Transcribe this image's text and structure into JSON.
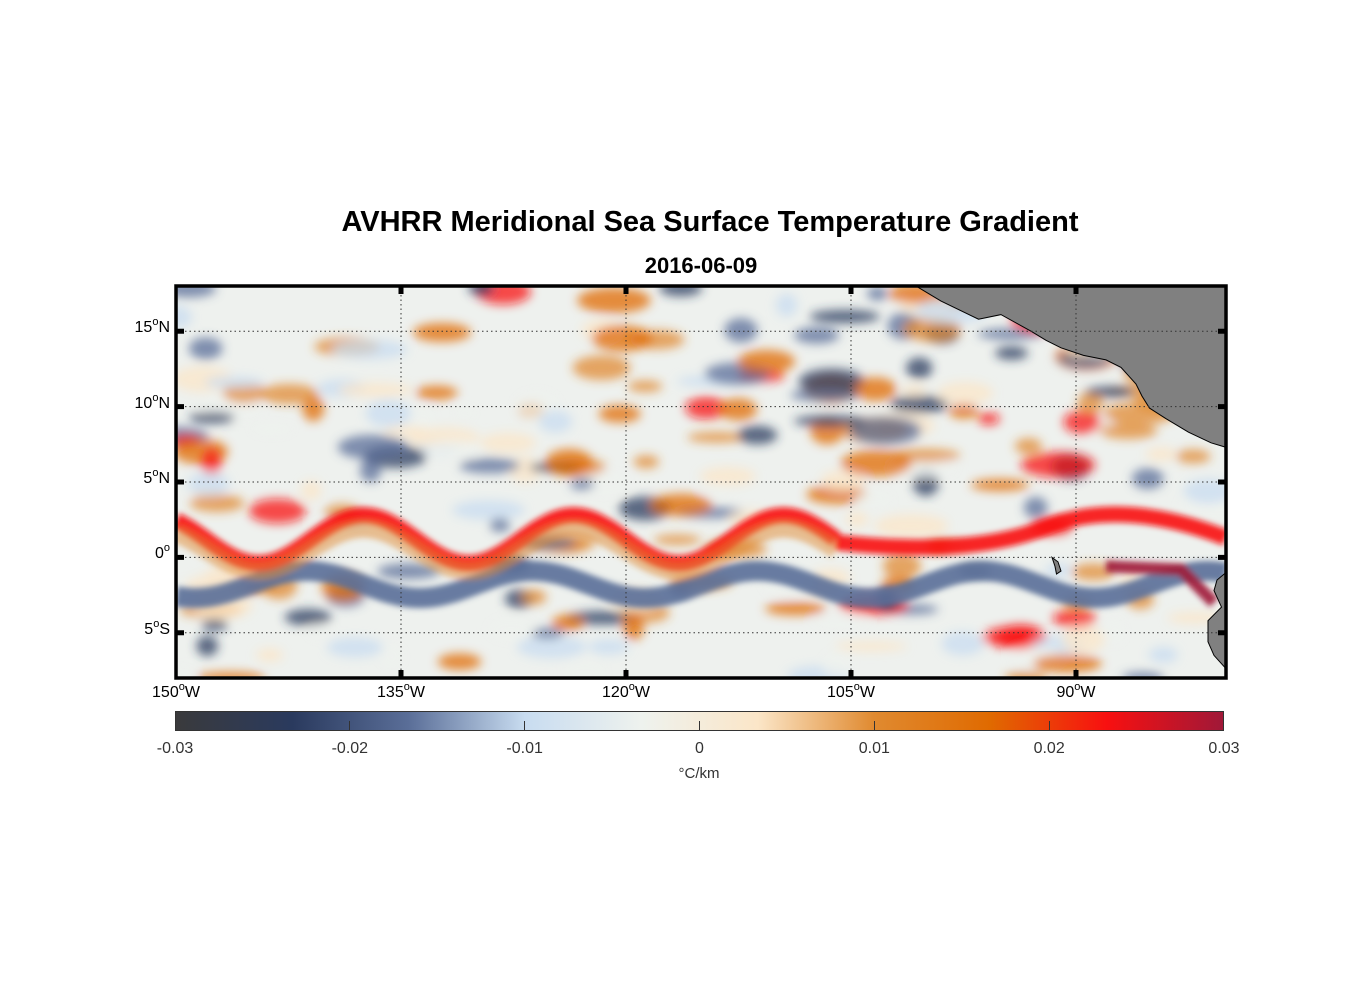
{
  "chart_data": {
    "type": "heatmap",
    "title": "AVHRR Meridional Sea Surface Temperature Gradient",
    "subtitle": "2016-06-09",
    "projection": "equirectangular",
    "lon_range": [
      -150,
      -80
    ],
    "lat_range": [
      -8,
      18
    ],
    "grid": "dotted",
    "y_ticks": [
      {
        "value": 15,
        "deg": "15",
        "hemi": "N"
      },
      {
        "value": 10,
        "deg": "10",
        "hemi": "N"
      },
      {
        "value": 5,
        "deg": "5",
        "hemi": "N"
      },
      {
        "value": 0,
        "deg": "0",
        "hemi": ""
      },
      {
        "value": -5,
        "deg": "5",
        "hemi": "S"
      }
    ],
    "x_ticks": [
      {
        "value": -150,
        "deg": "150",
        "hemi": "W"
      },
      {
        "value": -135,
        "deg": "135",
        "hemi": "W"
      },
      {
        "value": -120,
        "deg": "120",
        "hemi": "W"
      },
      {
        "value": -105,
        "deg": "105",
        "hemi": "W"
      },
      {
        "value": -90,
        "deg": "90",
        "hemi": "W"
      }
    ],
    "colorbar": {
      "range": [
        -0.03,
        0.03
      ],
      "ticks": [
        "-0.03",
        "-0.02",
        "-0.01",
        "0",
        "0.01",
        "0.02",
        "0.03"
      ],
      "tick_values": [
        -0.03,
        -0.02,
        -0.01,
        0,
        0.01,
        0.02,
        0.03
      ],
      "label": "°C/km",
      "colors": [
        "#3a3a3c",
        "#2a3a5e",
        "#5a6e98",
        "#c8dcf0",
        "#eef2ee",
        "#fbe6c8",
        "#e08a30",
        "#e06a00",
        "#f81010",
        "#a01838"
      ]
    },
    "features": {
      "warm_front_band": {
        "description_value": 0.02,
        "lat_center": 1.5
      },
      "cool_band": {
        "description_value": -0.02,
        "lat_center": -2
      },
      "land_color": "#808080"
    }
  }
}
